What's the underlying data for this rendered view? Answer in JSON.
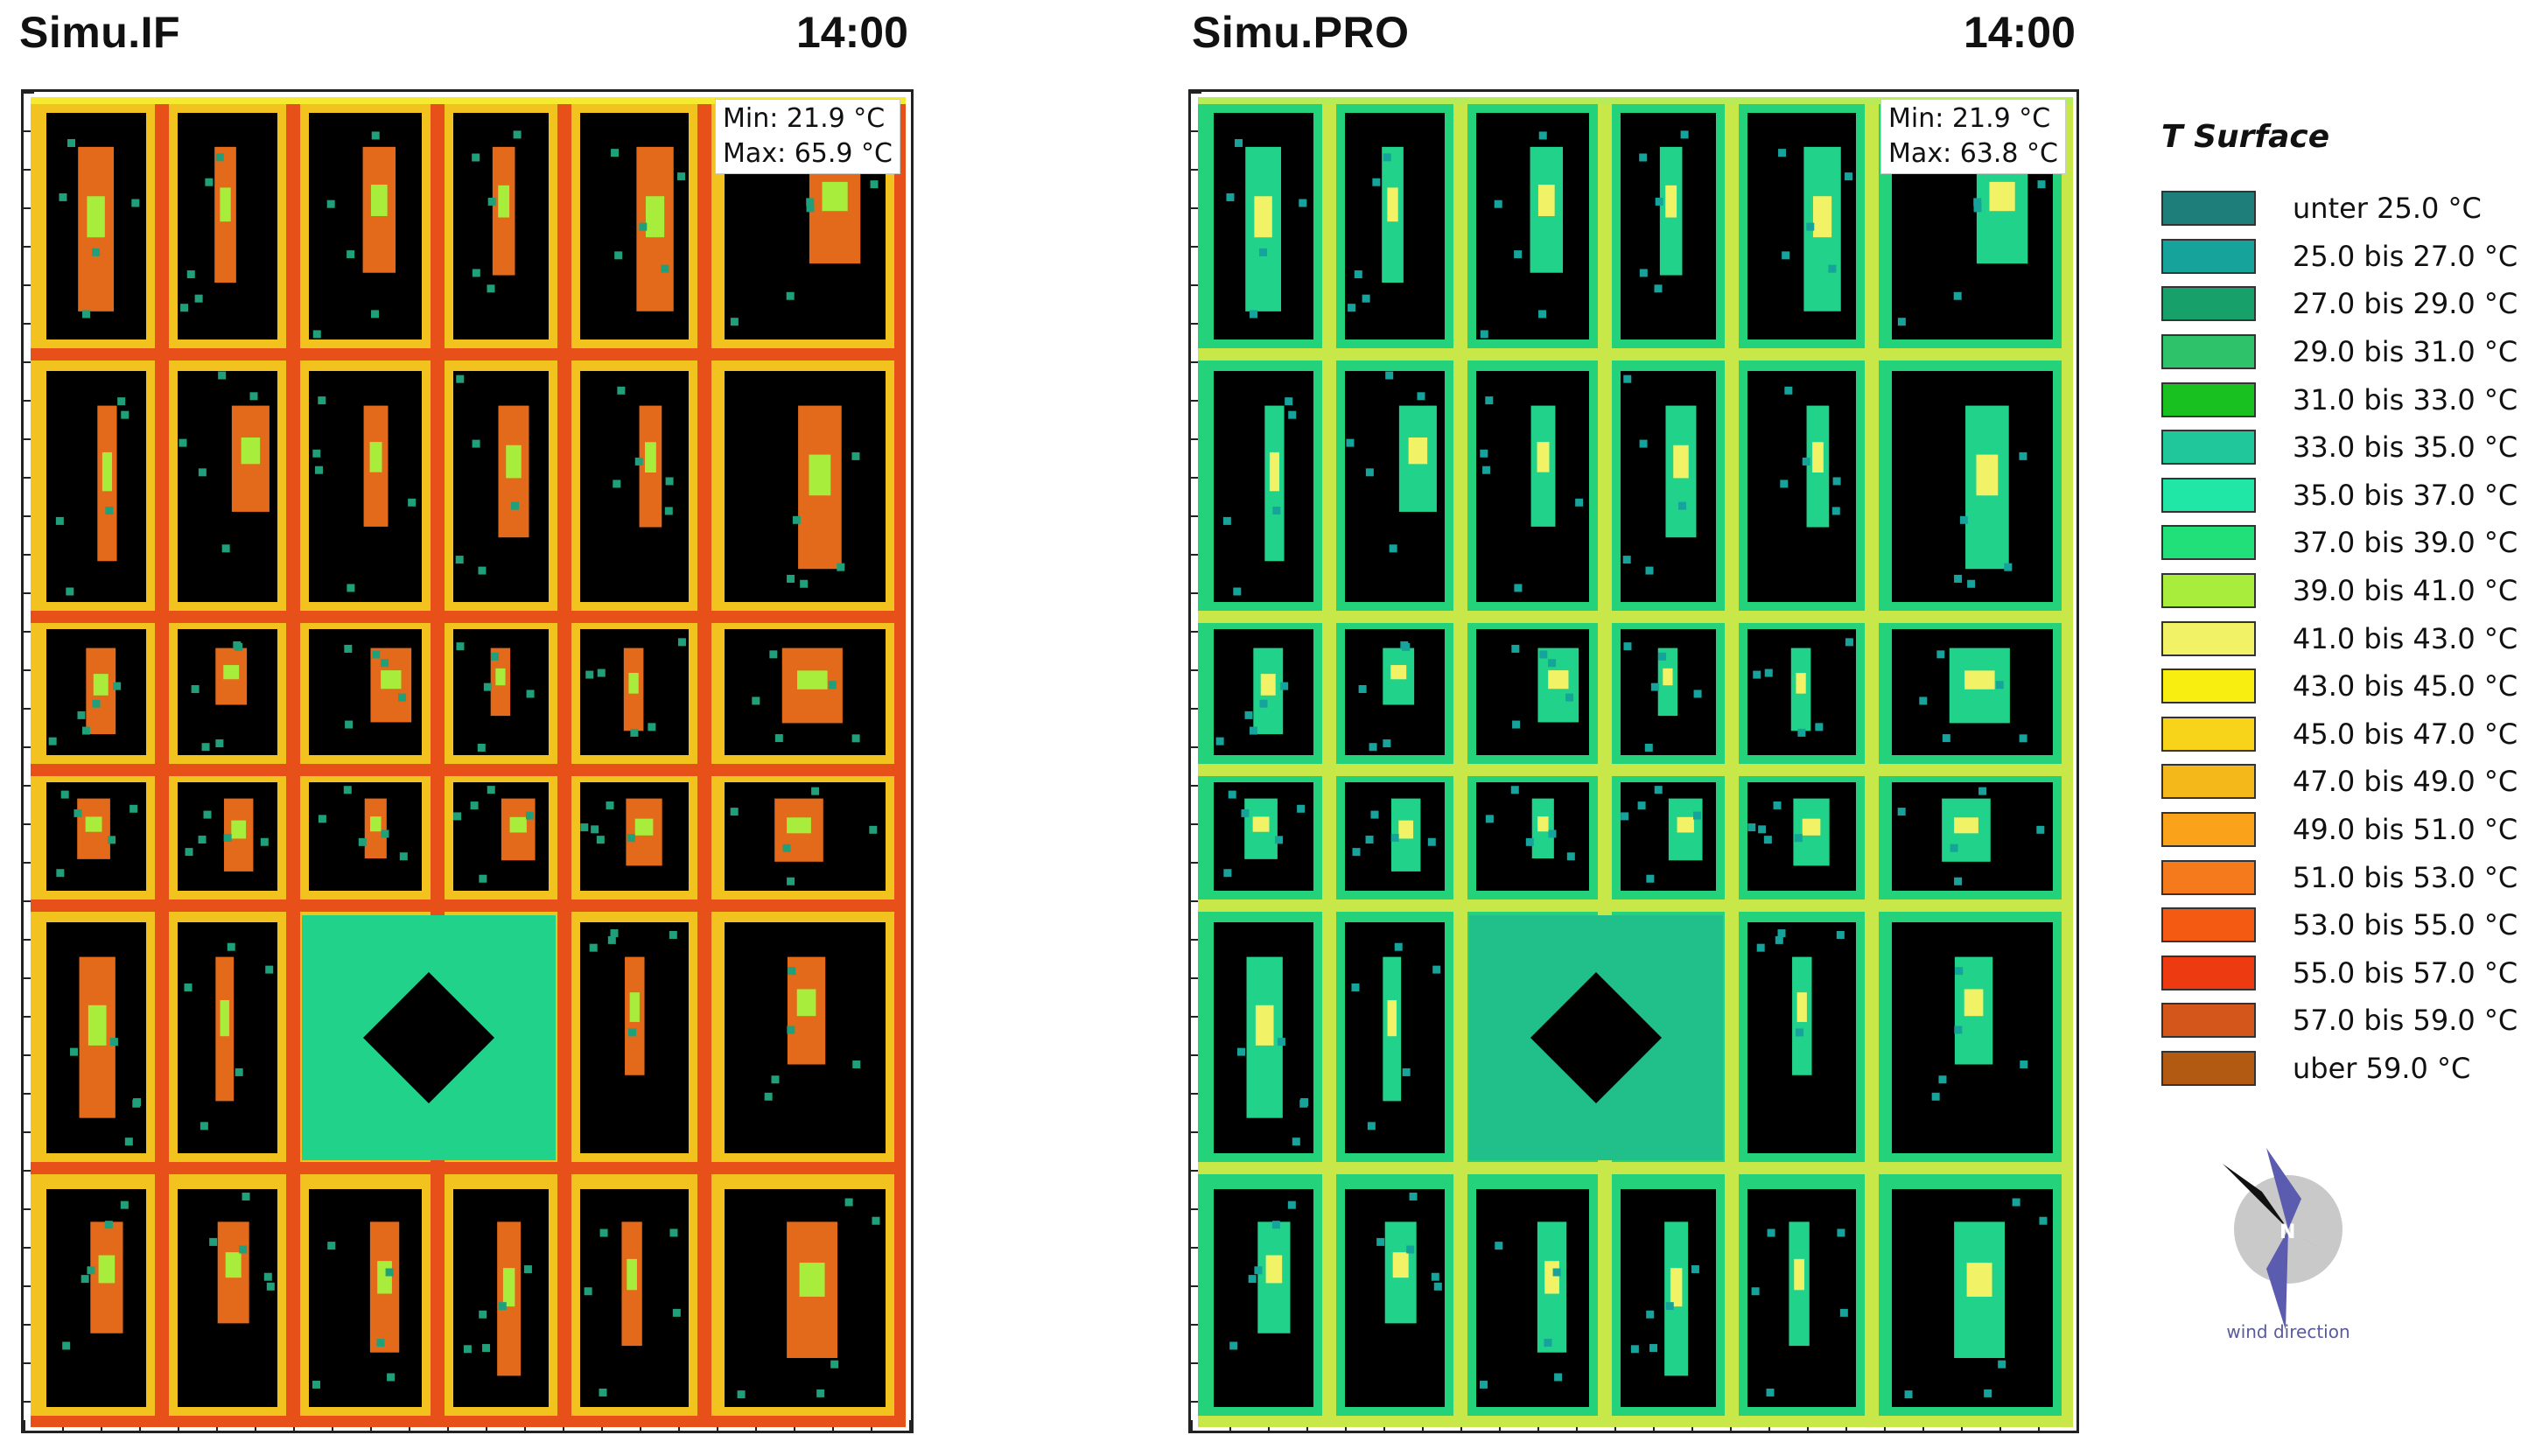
{
  "panels": [
    {
      "title": "Simu.IF",
      "time": "14:00",
      "min_label": "Min: 21.9 °C",
      "max_label": "Max: 65.9 °C"
    },
    {
      "title": "Simu.PRO",
      "time": "14:00",
      "min_label": "Min: 21.9 °C",
      "max_label": "Max: 63.8 °C"
    }
  ],
  "legend": {
    "title": "T Surface",
    "items": [
      {
        "label": "unter 25.0 °C",
        "color": "#1e7f7a"
      },
      {
        "label": "25.0 bis 27.0 °C",
        "color": "#16a39b"
      },
      {
        "label": "27.0 bis 29.0 °C",
        "color": "#18a06a"
      },
      {
        "label": "29.0 bis 31.0 °C",
        "color": "#2ec26a"
      },
      {
        "label": "31.0 bis 33.0 °C",
        "color": "#18c020"
      },
      {
        "label": "33.0 bis 35.0 °C",
        "color": "#1fc79a"
      },
      {
        "label": "35.0 bis 37.0 °C",
        "color": "#20e6a6"
      },
      {
        "label": "37.0 bis 39.0 °C",
        "color": "#21e07a"
      },
      {
        "label": "39.0 bis 41.0 °C",
        "color": "#a8ec3c"
      },
      {
        "label": "41.0 bis 43.0 °C",
        "color": "#f2f266"
      },
      {
        "label": "43.0 bis 45.0 °C",
        "color": "#f8ee10"
      },
      {
        "label": "45.0 bis 47.0 °C",
        "color": "#f7d41a"
      },
      {
        "label": "47.0 bis 49.0 °C",
        "color": "#f4b81a"
      },
      {
        "label": "49.0 bis 51.0 °C",
        "color": "#f9a21a"
      },
      {
        "label": "51.0 bis 53.0 °C",
        "color": "#f57a1c"
      },
      {
        "label": "53.0 bis 55.0 °C",
        "color": "#f45a12"
      },
      {
        "label": "55.0 bis 57.0 °C",
        "color": "#ee3a10"
      },
      {
        "label": "57.0 bis 59.0 °C",
        "color": "#d4561a"
      },
      {
        "label": "uber 59.0 °C",
        "color": "#b35a12"
      }
    ]
  },
  "compass": {
    "letter": "N",
    "caption": "wind direction",
    "color": "#5b5bb0"
  },
  "map_colors": {
    "building": "#000000",
    "if": {
      "base": "#f2c21e",
      "street": "#e8501a",
      "edge": "#f6ea30",
      "court": "#e36a1a",
      "courtyard_alt": "#a8ec3c",
      "park": "#21d28a",
      "dot": "#1fa07a"
    },
    "pro": {
      "base": "#24d27c",
      "street": "#c8e84a",
      "edge": "#b6ec58",
      "court": "#21d28a",
      "courtyard_alt": "#f2f266",
      "park": "#21c08a",
      "dot": "#16a39b"
    }
  }
}
